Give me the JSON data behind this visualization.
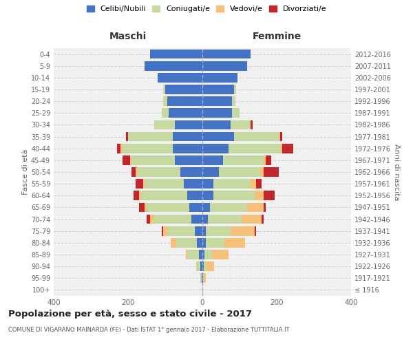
{
  "age_groups": [
    "100+",
    "95-99",
    "90-94",
    "85-89",
    "80-84",
    "75-79",
    "70-74",
    "65-69",
    "60-64",
    "55-59",
    "50-54",
    "45-49",
    "40-44",
    "35-39",
    "30-34",
    "25-29",
    "20-24",
    "15-19",
    "10-14",
    "5-9",
    "0-4"
  ],
  "birth_years": [
    "≤ 1916",
    "1917-1921",
    "1922-1926",
    "1927-1931",
    "1932-1936",
    "1937-1941",
    "1942-1946",
    "1947-1951",
    "1952-1956",
    "1957-1961",
    "1962-1966",
    "1967-1971",
    "1972-1976",
    "1977-1981",
    "1982-1986",
    "1987-1991",
    "1992-1996",
    "1997-2001",
    "2002-2006",
    "2007-2011",
    "2012-2016"
  ],
  "maschi": {
    "celibi": [
      0,
      2,
      5,
      10,
      15,
      20,
      30,
      35,
      40,
      50,
      60,
      75,
      80,
      80,
      75,
      90,
      95,
      100,
      120,
      155,
      140
    ],
    "coniugati": [
      0,
      3,
      10,
      30,
      55,
      75,
      100,
      115,
      125,
      105,
      115,
      115,
      135,
      120,
      55,
      20,
      10,
      5,
      0,
      0,
      0
    ],
    "vedovi": [
      0,
      0,
      2,
      5,
      15,
      10,
      10,
      5,
      5,
      5,
      5,
      5,
      5,
      0,
      0,
      0,
      0,
      0,
      0,
      0,
      0
    ],
    "divorziati": [
      0,
      0,
      0,
      0,
      0,
      5,
      10,
      15,
      15,
      20,
      10,
      20,
      10,
      5,
      0,
      0,
      0,
      0,
      0,
      0,
      0
    ]
  },
  "femmine": {
    "nubili": [
      0,
      1,
      3,
      5,
      10,
      10,
      15,
      20,
      30,
      30,
      45,
      55,
      70,
      85,
      75,
      80,
      80,
      85,
      95,
      120,
      130
    ],
    "coniugate": [
      0,
      3,
      8,
      20,
      50,
      65,
      90,
      100,
      110,
      100,
      110,
      110,
      140,
      120,
      55,
      20,
      8,
      5,
      0,
      0,
      0
    ],
    "vedove": [
      1,
      5,
      20,
      45,
      55,
      65,
      55,
      45,
      25,
      15,
      10,
      5,
      5,
      5,
      0,
      0,
      0,
      0,
      0,
      0,
      0
    ],
    "divorziate": [
      0,
      0,
      0,
      0,
      0,
      5,
      5,
      5,
      30,
      15,
      40,
      15,
      30,
      5,
      5,
      0,
      0,
      0,
      0,
      0,
      0
    ]
  },
  "colors": {
    "celibi_nubili": "#4472c4",
    "coniugati_e": "#c5d9a0",
    "vedovi_e": "#f5c07a",
    "divorziati_e": "#c0262b"
  },
  "title": "Popolazione per età, sesso e stato civile - 2017",
  "subtitle": "COMUNE DI VIGARANO MAINARDA (FE) - Dati ISTAT 1° gennaio 2017 - Elaborazione TUTTITALIA.IT",
  "xlabel_left": "Maschi",
  "xlabel_right": "Femmine",
  "ylabel_left": "Fasce di età",
  "ylabel_right": "Anni di nascita",
  "xlim": 400,
  "legend_labels": [
    "Celibi/Nubili",
    "Coniugati/e",
    "Vedovi/e",
    "Divorziati/e"
  ],
  "bg_color": "#ffffff",
  "grid_color": "#d0d0d0"
}
